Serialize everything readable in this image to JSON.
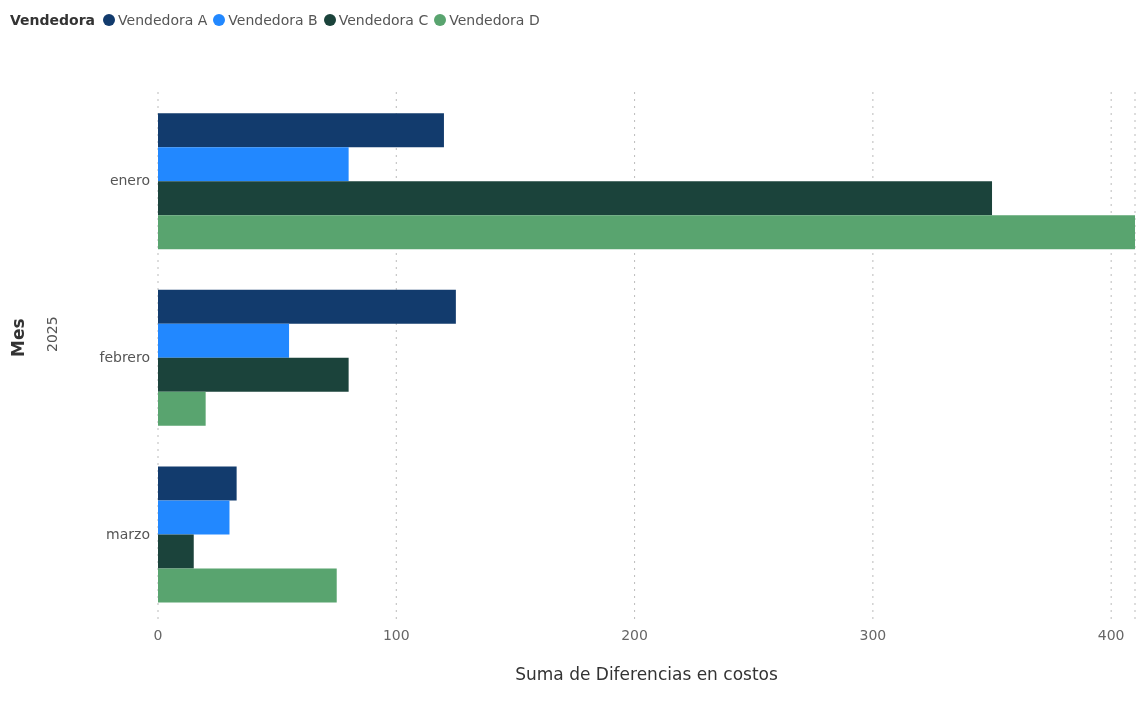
{
  "chart_data": {
    "type": "bar",
    "orientation": "horizontal",
    "xlabel": "Suma de Diferencias en costos",
    "ylabel": "Mes",
    "legend_title": "Vendedora",
    "legend": "top left",
    "grid": "x",
    "categories": [
      "enero",
      "febrero",
      "marzo"
    ],
    "series": [
      {
        "name": "Vendedora A",
        "color": "#123b6d",
        "values": [
          120,
          125,
          33
        ]
      },
      {
        "name": "Vendedora B",
        "color": "#2288ff",
        "values": [
          80,
          55,
          30
        ]
      },
      {
        "name": "Vendedora C",
        "color": "#1b433b",
        "values": [
          350,
          80,
          15
        ]
      },
      {
        "name": "Vendedora D",
        "color": "#59a46f",
        "values": [
          410,
          20,
          75
        ]
      }
    ],
    "xlim": [
      0,
      410
    ],
    "xticks": [
      0,
      100,
      200,
      300,
      400
    ],
    "annotations": [
      "2025"
    ]
  }
}
